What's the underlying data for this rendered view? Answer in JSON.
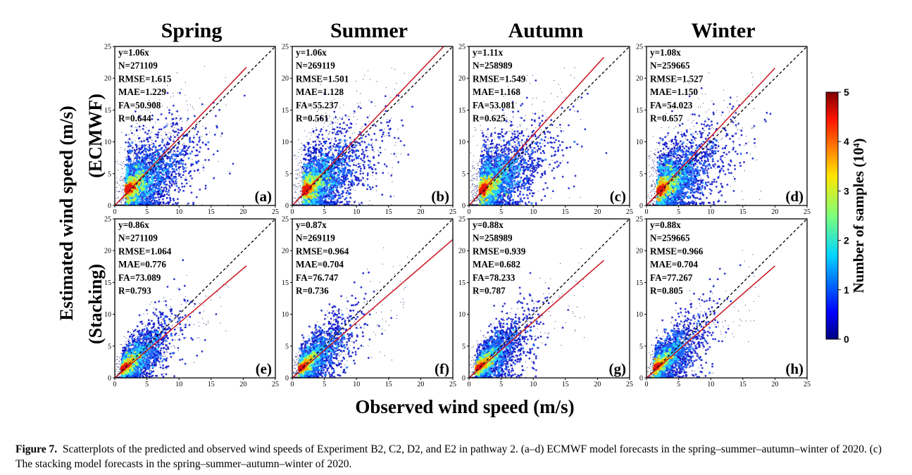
{
  "figure": {
    "col_titles": [
      "Spring",
      "Summer",
      "Autumn",
      "Winter"
    ],
    "row_titles": [
      "(ECMWF)",
      "(Stacking)"
    ],
    "ylabel": "Estimated wind speed (m/s)",
    "xlabel": "Observed wind speed (m/s)",
    "colorbar": {
      "label": "Number of samples (10⁴)",
      "ticks": [
        "0",
        "1",
        "2",
        "3",
        "4",
        "5"
      ],
      "range": [
        0,
        5
      ]
    }
  },
  "caption": {
    "label": "Figure 7.",
    "text": "Scatterplots of the predicted and observed wind speeds of Experiment B2, C2, D2, and E2 in pathway 2. (a–d) ECMWF model forecasts in the spring–summer–autumn–winter of 2020. (c) The stacking model forecasts in the spring–summer–autumn–winter of 2020."
  },
  "chart_data": [
    {
      "type": "scatter",
      "panel": "(a)",
      "slope": 1.06,
      "fit_xmax": 20.5,
      "stats": [
        "y=1.06x",
        "N=271109",
        "RMSE=1.615",
        "MAE=1.229",
        "FA=50.908",
        "R=0.644"
      ],
      "xlim": [
        0,
        25
      ],
      "ylim": [
        0,
        25
      ],
      "xticks": [
        0,
        5,
        10,
        15,
        20,
        25
      ],
      "yticks": [
        0,
        5,
        10,
        15,
        20,
        25
      ]
    },
    {
      "type": "scatter",
      "panel": "(b)",
      "slope": 1.06,
      "fit_xmax": 25,
      "stats": [
        "y=1.06x",
        "N=269119",
        "RMSE=1.501",
        "MAE=1.128",
        "FA=55.237",
        "R=0.561"
      ],
      "xlim": [
        0,
        25
      ],
      "ylim": [
        0,
        25
      ],
      "xticks": [
        0,
        5,
        10,
        15,
        20,
        25
      ],
      "yticks": [
        0,
        5,
        10,
        15,
        20,
        25
      ]
    },
    {
      "type": "scatter",
      "panel": "(c)",
      "slope": 1.11,
      "fit_xmax": 21,
      "stats": [
        "y=1.11x",
        "N=258989",
        "RMSE=1.549",
        "MAE=1.168",
        "FA=53.081",
        "R=0.625"
      ],
      "xlim": [
        0,
        25
      ],
      "ylim": [
        0,
        25
      ],
      "xticks": [
        0,
        5,
        10,
        15,
        20,
        25
      ],
      "yticks": [
        0,
        5,
        10,
        15,
        20,
        25
      ]
    },
    {
      "type": "scatter",
      "panel": "(d)",
      "slope": 1.08,
      "fit_xmax": 20,
      "stats": [
        "y=1.08x",
        "N=259665",
        "RMSE=1.527",
        "MAE=1.150",
        "FA=54.023",
        "R=0.657"
      ],
      "xlim": [
        0,
        25
      ],
      "ylim": [
        0,
        25
      ],
      "xticks": [
        0,
        5,
        10,
        15,
        20,
        25
      ],
      "yticks": [
        0,
        5,
        10,
        15,
        20,
        25
      ]
    },
    {
      "type": "scatter",
      "panel": "(e)",
      "slope": 0.86,
      "fit_xmax": 20.5,
      "stats": [
        "y=0.86x",
        "N=271109",
        "RMSE=1.064",
        "MAE=0.776",
        "FA=73.089",
        "R=0.793"
      ],
      "xlim": [
        0,
        25
      ],
      "ylim": [
        0,
        25
      ],
      "xticks": [
        0,
        5,
        10,
        15,
        20,
        25
      ],
      "yticks": [
        0,
        5,
        10,
        15,
        20,
        25
      ]
    },
    {
      "type": "scatter",
      "panel": "(f)",
      "slope": 0.87,
      "fit_xmax": 25,
      "stats": [
        "y=0.87x",
        "N=269119",
        "RMSE=0.964",
        "MAE=0.704",
        "FA=76.747",
        "R=0.736"
      ],
      "xlim": [
        0,
        25
      ],
      "ylim": [
        0,
        25
      ],
      "xticks": [
        0,
        5,
        10,
        15,
        20,
        25
      ],
      "yticks": [
        0,
        5,
        10,
        15,
        20,
        25
      ]
    },
    {
      "type": "scatter",
      "panel": "(g)",
      "slope": 0.88,
      "fit_xmax": 21,
      "stats": [
        "y=0.88x",
        "N=258989",
        "RMSE=0.939",
        "MAE=0.682",
        "FA=78.233",
        "R=0.787"
      ],
      "xlim": [
        0,
        25
      ],
      "ylim": [
        0,
        25
      ],
      "xticks": [
        0,
        5,
        10,
        15,
        20,
        25
      ],
      "yticks": [
        0,
        5,
        10,
        15,
        20,
        25
      ]
    },
    {
      "type": "scatter",
      "panel": "(h)",
      "slope": 0.88,
      "fit_xmax": 20,
      "stats": [
        "y=0.88x",
        "N=259665",
        "RMSE=0.966",
        "MAE=0.704",
        "FA=77.267",
        "R=0.805"
      ],
      "xlim": [
        0,
        25
      ],
      "ylim": [
        0,
        25
      ],
      "xticks": [
        0,
        5,
        10,
        15,
        20,
        25
      ],
      "yticks": [
        0,
        5,
        10,
        15,
        20,
        25
      ]
    }
  ]
}
